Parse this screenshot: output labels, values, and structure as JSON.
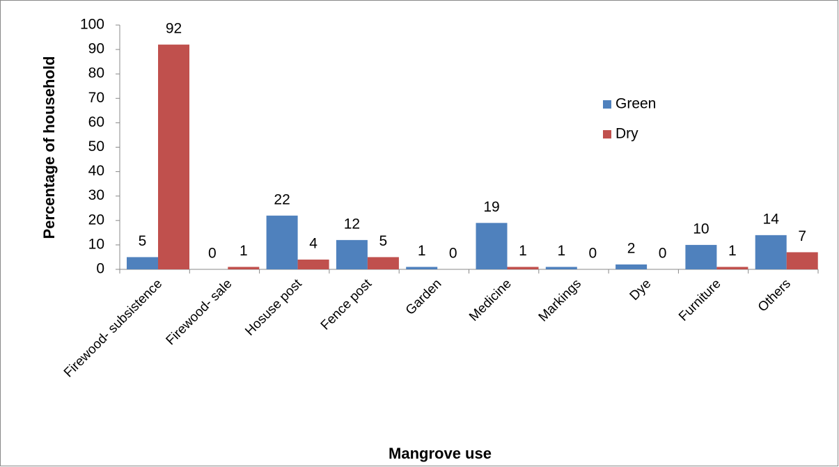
{
  "chart_data": {
    "type": "bar",
    "x_label": "Mangrove use",
    "y_label": "Percentage of household",
    "categories": [
      "Firewood- subsistence",
      "Firewood- sale",
      "Hosuse post",
      "Fence post",
      "Garden",
      "Medicine",
      "Markings",
      "Dye",
      "Furniture",
      "Others"
    ],
    "series": [
      {
        "name": "Green",
        "color": "#4f81bd",
        "values": [
          5,
          0,
          22,
          12,
          1,
          19,
          1,
          2,
          10,
          14
        ]
      },
      {
        "name": "Dry",
        "color": "#c0504d",
        "values": [
          92,
          1,
          4,
          5,
          0,
          1,
          0,
          0,
          1,
          7
        ]
      }
    ],
    "ylim": [
      0,
      100
    ],
    "yticks": [
      0,
      10,
      20,
      30,
      40,
      50,
      60,
      70,
      80,
      90,
      100
    ],
    "grid": false,
    "legend": "right"
  }
}
